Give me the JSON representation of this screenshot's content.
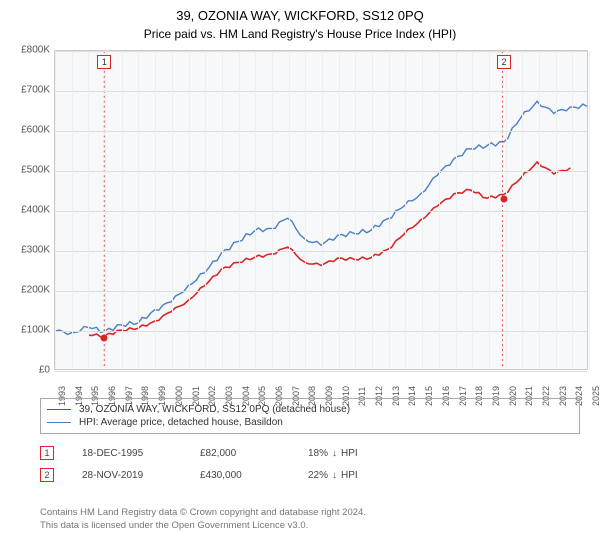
{
  "title_main": "39, OZONIA WAY, WICKFORD, SS12 0PQ",
  "title_sub": "Price paid vs. HM Land Registry's House Price Index (HPI)",
  "chart": {
    "type": "line",
    "background_color": "#f7f8fa",
    "grid_color": "#dddddd",
    "border_color": "#cccccc",
    "y_axis": {
      "min": 0,
      "max": 800000,
      "step": 100000,
      "label_fontsize": 10,
      "label_color": "#555555",
      "labels": [
        "£0",
        "£100K",
        "£200K",
        "£300K",
        "£400K",
        "£500K",
        "£600K",
        "£700K",
        "£800K"
      ]
    },
    "x_axis": {
      "min": 1993,
      "max": 2025,
      "step": 1,
      "label_fontsize": 9,
      "label_color": "#555555",
      "labels": [
        "1993",
        "1994",
        "1995",
        "1996",
        "1997",
        "1998",
        "1999",
        "2000",
        "2001",
        "2002",
        "2003",
        "2004",
        "2005",
        "2006",
        "2007",
        "2008",
        "2009",
        "2010",
        "2011",
        "2012",
        "2013",
        "2014",
        "2015",
        "2016",
        "2017",
        "2018",
        "2019",
        "2020",
        "2021",
        "2022",
        "2023",
        "2024",
        "2025"
      ]
    },
    "series": [
      {
        "name": "property",
        "label": "39, OZONIA WAY, WICKFORD, SS12 0PQ (detached house)",
        "color": "#d62728",
        "line_width": 1.6,
        "years": [
          1995,
          1996,
          1997,
          1998,
          1999,
          2000,
          2001,
          2002,
          2003,
          2004,
          2005,
          2006,
          2007,
          2008,
          2009,
          2010,
          2011,
          2012,
          2013,
          2014,
          2015,
          2016,
          2017,
          2018,
          2019,
          2020,
          2021,
          2022,
          2023,
          2024
        ],
        "values": [
          82000,
          85000,
          92000,
          105000,
          120000,
          150000,
          170000,
          210000,
          245000,
          270000,
          280000,
          295000,
          305000,
          270000,
          255000,
          280000,
          275000,
          285000,
          300000,
          340000,
          370000,
          410000,
          440000,
          455000,
          430000,
          440000,
          475000,
          520000,
          490000,
          510000
        ]
      },
      {
        "name": "hpi",
        "label": "HPI: Average price, detached house, Basildon",
        "color": "#4a7fc1",
        "line_width": 1.4,
        "years": [
          1993,
          1994,
          1995,
          1996,
          1997,
          1998,
          1999,
          2000,
          2001,
          2002,
          2003,
          2004,
          2005,
          2006,
          2007,
          2008,
          2009,
          2010,
          2011,
          2012,
          2013,
          2014,
          2015,
          2016,
          2017,
          2018,
          2019,
          2020,
          2021,
          2022,
          2023,
          2024,
          2025
        ],
        "values": [
          90000,
          92000,
          95000,
          100000,
          110000,
          125000,
          145000,
          170000,
          200000,
          245000,
          290000,
          330000,
          345000,
          355000,
          370000,
          330000,
          310000,
          345000,
          340000,
          350000,
          370000,
          410000,
          440000,
          495000,
          530000,
          555000,
          555000,
          570000,
          630000,
          680000,
          645000,
          660000,
          655000
        ]
      }
    ],
    "markers": [
      {
        "id": "1",
        "year": 1995.96,
        "value": 82000,
        "color": "#d62728",
        "box_border": "#d62728"
      },
      {
        "id": "2",
        "year": 2019.91,
        "value": 430000,
        "color": "#d62728",
        "box_border": "#d62728"
      }
    ],
    "marker_line_color": "#d62728",
    "marker_line_dash": "2,3"
  },
  "legend": {
    "border_color": "#aaaaaa",
    "fontsize": 10
  },
  "data_rows": [
    {
      "id": "1",
      "border": "#d62728",
      "date": "18-DEC-1995",
      "price": "£82,000",
      "delta": "18%",
      "arrow": "↓",
      "suffix": "HPI"
    },
    {
      "id": "2",
      "border": "#d62728",
      "date": "28-NOV-2019",
      "price": "£430,000",
      "delta": "22%",
      "arrow": "↓",
      "suffix": "HPI"
    }
  ],
  "footer": {
    "line1": "Contains HM Land Registry data © Crown copyright and database right 2024.",
    "line2": "This data is licensed under the Open Government Licence v3.0."
  }
}
